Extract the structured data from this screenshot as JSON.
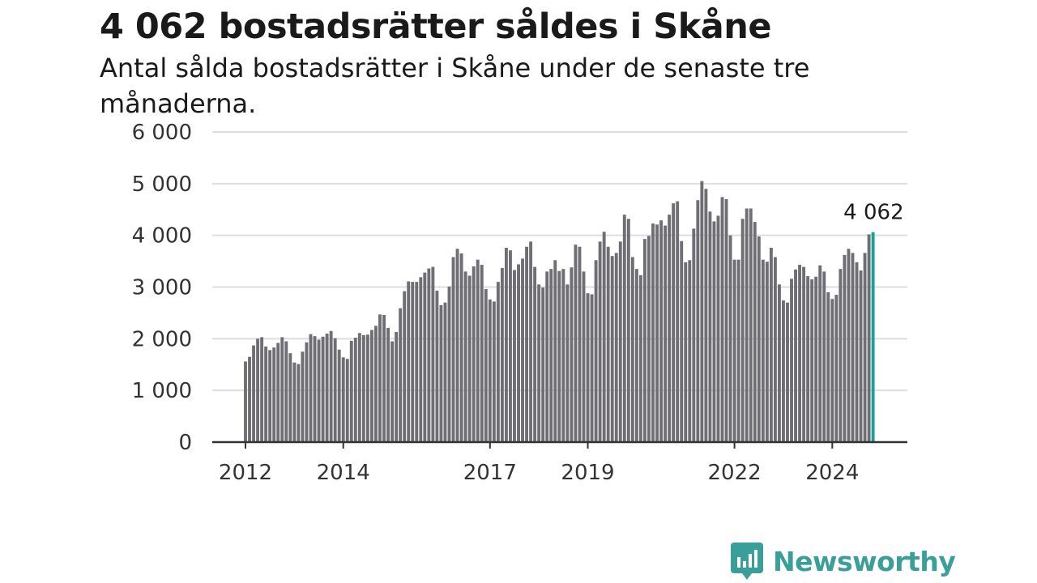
{
  "title": "4 062 bostadsrätter såldes i Skåne",
  "subtitle": "Antal sålda bostadsrätter i Skåne under de senaste tre månaderna.",
  "brand": {
    "name": "Newsworthy",
    "logo_icon": "newsworthy-logo-icon",
    "color": "#3a9f99"
  },
  "colors": {
    "bar": "#6f6e74",
    "highlight": "#16a29a",
    "grid": "#dddddd",
    "axis": "#333333"
  },
  "chart_data": {
    "type": "bar",
    "title": "4 062 bostadsrätter såldes i Skåne",
    "subtitle": "Antal sålda bostadsrätter i Skåne under de senaste tre månaderna.",
    "xlabel": "",
    "ylabel": "",
    "ylim": [
      0,
      6000
    ],
    "yticks": [
      0,
      1000,
      2000,
      3000,
      4000,
      5000,
      6000
    ],
    "ytick_labels": [
      "0",
      "1 000",
      "2 000",
      "3 000",
      "4 000",
      "5 000",
      "6 000"
    ],
    "xtick_labels": [
      {
        "label": "2012",
        "index": 0
      },
      {
        "label": "2014",
        "index": 24
      },
      {
        "label": "2017",
        "index": 60
      },
      {
        "label": "2019",
        "index": 84
      },
      {
        "label": "2022",
        "index": 120
      },
      {
        "label": "2024",
        "index": 144
      }
    ],
    "grid": true,
    "highlight": {
      "index": 154,
      "label": "4 062"
    },
    "values": [
      1560,
      1650,
      1870,
      2000,
      2030,
      1850,
      1780,
      1830,
      1920,
      2030,
      1950,
      1720,
      1540,
      1510,
      1750,
      1930,
      2090,
      2050,
      1980,
      2040,
      2100,
      2150,
      2010,
      1790,
      1640,
      1610,
      1960,
      2020,
      2110,
      2070,
      2080,
      2170,
      2250,
      2470,
      2460,
      2210,
      1950,
      2130,
      2590,
      2920,
      3110,
      3100,
      3100,
      3190,
      3280,
      3360,
      3390,
      2930,
      2650,
      2700,
      3010,
      3580,
      3740,
      3650,
      3300,
      3220,
      3400,
      3530,
      3430,
      2960,
      2760,
      2720,
      3100,
      3370,
      3760,
      3710,
      3330,
      3440,
      3550,
      3780,
      3880,
      3390,
      3050,
      2990,
      3300,
      3350,
      3520,
      3310,
      3350,
      3050,
      3380,
      3820,
      3780,
      3300,
      2880,
      2860,
      3520,
      3880,
      4070,
      3780,
      3600,
      3660,
      3880,
      4400,
      4320,
      3580,
      3350,
      3230,
      3930,
      3990,
      4230,
      4210,
      4290,
      4190,
      4400,
      4620,
      4660,
      3890,
      3480,
      3520,
      4130,
      4680,
      5050,
      4900,
      4460,
      4270,
      4380,
      4740,
      4700,
      4000,
      3530,
      3530,
      4320,
      4520,
      4520,
      4260,
      3980,
      3530,
      3490,
      3760,
      3580,
      3050,
      2740,
      2700,
      3160,
      3340,
      3430,
      3390,
      3210,
      3150,
      3200,
      3420,
      3300,
      2900,
      2770,
      2850,
      3350,
      3620,
      3740,
      3660,
      3480,
      3320,
      3660,
      4020,
      4062
    ]
  }
}
